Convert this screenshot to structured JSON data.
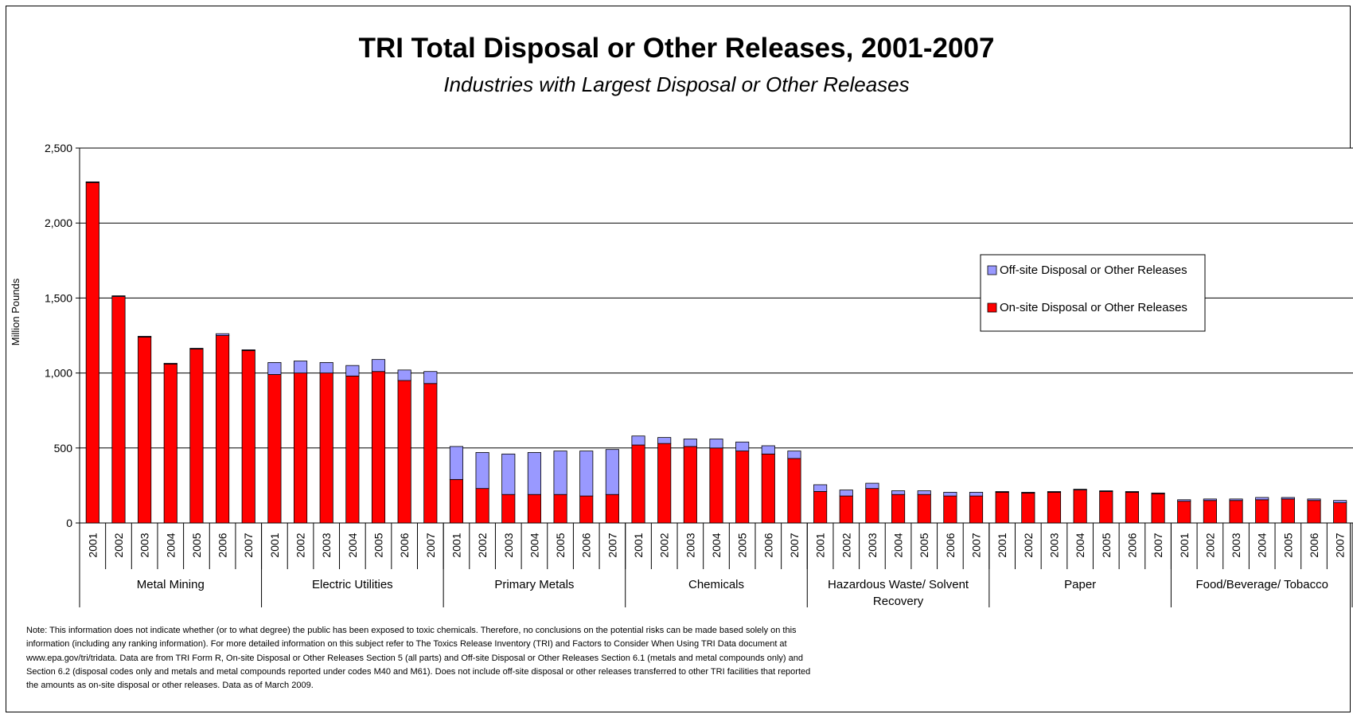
{
  "chart_data": {
    "type": "bar",
    "stacked": true,
    "title": "TRI Total Disposal or Other Releases, 2001-2007",
    "subtitle": "Industries with Largest Disposal or Other Releases",
    "ylabel": "Million Pounds",
    "ylim": [
      0,
      2500
    ],
    "yticks": [
      0,
      500,
      1000,
      1500,
      2000,
      2500
    ],
    "ytick_labels": [
      "0",
      "500",
      "1,000",
      "1,500",
      "2,000",
      "2,500"
    ],
    "grid": true,
    "legend_position": "right",
    "years": [
      "2001",
      "2002",
      "2003",
      "2004",
      "2005",
      "2006",
      "2007"
    ],
    "groups": [
      "Metal Mining",
      "Electric Utilities",
      "Primary Metals",
      "Chemicals",
      "Hazardous Waste/ Solvent Recovery",
      "Paper",
      "Food/Beverage/ Tobacco"
    ],
    "series": [
      {
        "name": "On-site Disposal or Other Releases",
        "color": "#ff0000",
        "values": [
          [
            2270,
            1510,
            1240,
            1060,
            1160,
            1250,
            1150
          ],
          [
            990,
            1000,
            1000,
            980,
            1010,
            950,
            930
          ],
          [
            290,
            230,
            190,
            190,
            190,
            180,
            190
          ],
          [
            520,
            530,
            510,
            500,
            480,
            460,
            430
          ],
          [
            210,
            180,
            230,
            190,
            190,
            180,
            180
          ],
          [
            205,
            200,
            205,
            220,
            210,
            205,
            195
          ],
          [
            145,
            150,
            150,
            155,
            160,
            150,
            135
          ]
        ]
      },
      {
        "name": "Off-site Disposal or Other Releases",
        "color": "#9999ff",
        "values": [
          [
            5,
            5,
            5,
            5,
            5,
            12,
            5
          ],
          [
            80,
            80,
            70,
            70,
            80,
            70,
            80
          ],
          [
            220,
            240,
            270,
            280,
            290,
            300,
            300
          ],
          [
            60,
            40,
            50,
            60,
            60,
            55,
            50
          ],
          [
            45,
            40,
            35,
            25,
            25,
            25,
            25
          ],
          [
            5,
            5,
            5,
            5,
            5,
            5,
            5
          ],
          [
            10,
            10,
            10,
            15,
            10,
            10,
            15
          ]
        ]
      }
    ]
  },
  "note": "Note: This information does not indicate whether (or to what degree) the public has been exposed to toxic chemicals. Therefore, no conclusions on the potential risks can be made based solely on this information (including any ranking information). For more detailed information on this subject refer to The Toxics Release Inventory (TRI) and Factors to Consider When Using TRI Data document at www.epa.gov/tri/tridata. Data are from TRI Form R, On-site Disposal or Other Releases Section 5 (all parts) and Off-site Disposal or Other Releases Section 6.1 (metals and metal compounds only) and Section 6.2 (disposal codes only and metals and metal compounds reported under codes M40 and M61). Does not include off-site disposal or other releases transferred to other TRI facilities that reported the amounts as on-site disposal or other releases. Data as of March 2009."
}
